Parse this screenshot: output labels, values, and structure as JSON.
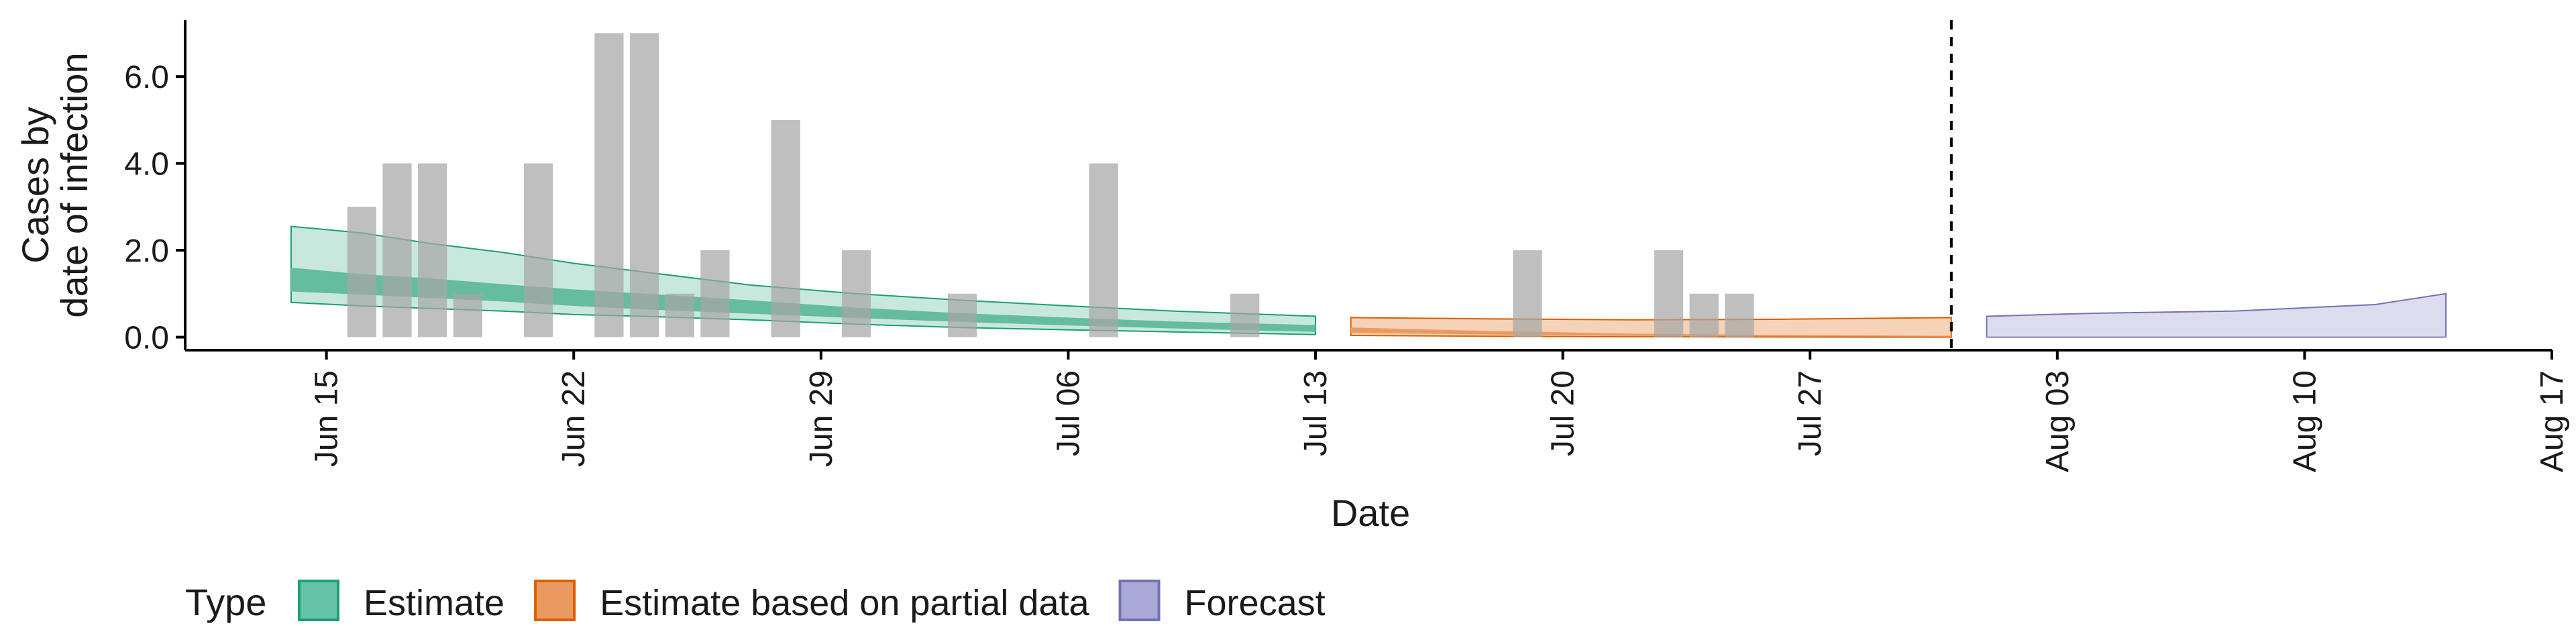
{
  "chart_data": {
    "type": "bar",
    "ylabel": [
      "Cases by",
      "date of infection"
    ],
    "xlabel": "Date",
    "xlim": [
      "2020-06-11",
      "2020-08-17"
    ],
    "ylim": [
      -0.3,
      7.3
    ],
    "grid": false,
    "y_ticks": [
      {
        "value": 0,
        "label": "0.0"
      },
      {
        "value": 2,
        "label": "2.0"
      },
      {
        "value": 4,
        "label": "4.0"
      },
      {
        "value": 6,
        "label": "6.0"
      }
    ],
    "x_ticks": [
      {
        "date": "2020-06-15",
        "label": "Jun 15"
      },
      {
        "date": "2020-06-22",
        "label": "Jun 22"
      },
      {
        "date": "2020-06-29",
        "label": "Jun 29"
      },
      {
        "date": "2020-07-06",
        "label": "Jul 06"
      },
      {
        "date": "2020-07-13",
        "label": "Jul 13"
      },
      {
        "date": "2020-07-20",
        "label": "Jul 20"
      },
      {
        "date": "2020-07-27",
        "label": "Jul 27"
      },
      {
        "date": "2020-08-03",
        "label": "Aug 03"
      },
      {
        "date": "2020-08-10",
        "label": "Aug 10"
      },
      {
        "date": "2020-08-17",
        "label": "Aug 17"
      }
    ],
    "observed_cases": [
      {
        "date": "2020-06-16",
        "value": 3
      },
      {
        "date": "2020-06-17",
        "value": 4
      },
      {
        "date": "2020-06-18",
        "value": 4
      },
      {
        "date": "2020-06-19",
        "value": 1
      },
      {
        "date": "2020-06-21",
        "value": 4
      },
      {
        "date": "2020-06-23",
        "value": 7
      },
      {
        "date": "2020-06-24",
        "value": 7
      },
      {
        "date": "2020-06-25",
        "value": 1
      },
      {
        "date": "2020-06-26",
        "value": 2
      },
      {
        "date": "2020-06-28",
        "value": 5
      },
      {
        "date": "2020-06-30",
        "value": 2
      },
      {
        "date": "2020-07-03",
        "value": 1
      },
      {
        "date": "2020-07-07",
        "value": 4
      },
      {
        "date": "2020-07-11",
        "value": 1
      },
      {
        "date": "2020-07-19",
        "value": 2
      },
      {
        "date": "2020-07-23",
        "value": 2
      },
      {
        "date": "2020-07-24",
        "value": 1
      },
      {
        "date": "2020-07-25",
        "value": 1
      }
    ],
    "forecast_start": "2020-07-31",
    "legend": {
      "title": "Type",
      "position": "bottom-left",
      "entries": [
        {
          "label": "Estimate",
          "fill": "#66c2a5",
          "stroke": "#1b9e77"
        },
        {
          "label": "Estimate based on partial data",
          "fill": "#eb9a5f",
          "stroke": "#d95f02"
        },
        {
          "label": "Forecast",
          "fill": "#aaa9d6",
          "stroke": "#7570b3"
        }
      ]
    },
    "series": [
      {
        "type_label": "Estimate",
        "outer_fill": "#c8e8de",
        "inner_fill": "#66bc9f",
        "stroke": "#1b9e77",
        "points": [
          {
            "date": "2020-06-14",
            "lo90": 0.8,
            "lo50": 1.05,
            "hi50": 1.6,
            "hi90": 2.55
          },
          {
            "date": "2020-06-16",
            "lo90": 0.72,
            "lo50": 0.98,
            "hi50": 1.45,
            "hi90": 2.4
          },
          {
            "date": "2020-06-18",
            "lo90": 0.66,
            "lo50": 0.9,
            "hi50": 1.35,
            "hi90": 2.15
          },
          {
            "date": "2020-06-20",
            "lo90": 0.6,
            "lo50": 0.82,
            "hi50": 1.22,
            "hi90": 1.95
          },
          {
            "date": "2020-06-22",
            "lo90": 0.52,
            "lo50": 0.72,
            "hi50": 1.1,
            "hi90": 1.7
          },
          {
            "date": "2020-06-24",
            "lo90": 0.48,
            "lo50": 0.64,
            "hi50": 1.0,
            "hi90": 1.5
          },
          {
            "date": "2020-06-27",
            "lo90": 0.4,
            "lo50": 0.54,
            "hi50": 0.85,
            "hi90": 1.2
          },
          {
            "date": "2020-06-30",
            "lo90": 0.3,
            "lo50": 0.44,
            "hi50": 0.68,
            "hi90": 1.0
          },
          {
            "date": "2020-07-03",
            "lo90": 0.22,
            "lo50": 0.35,
            "hi50": 0.55,
            "hi90": 0.85
          },
          {
            "date": "2020-07-06",
            "lo90": 0.17,
            "lo50": 0.27,
            "hi50": 0.45,
            "hi90": 0.72
          },
          {
            "date": "2020-07-09",
            "lo90": 0.12,
            "lo50": 0.2,
            "hi50": 0.36,
            "hi90": 0.6
          },
          {
            "date": "2020-07-13",
            "lo90": 0.06,
            "lo50": 0.12,
            "hi50": 0.28,
            "hi90": 0.48
          }
        ]
      },
      {
        "type_label": "Estimate based on partial data",
        "outer_fill": "#f5d2b8",
        "inner_fill": "#eb9a5f",
        "stroke": "#d95f02",
        "points": [
          {
            "date": "2020-07-14",
            "lo90": 0.04,
            "lo50": 0.1,
            "hi50": 0.22,
            "hi90": 0.45
          },
          {
            "date": "2020-07-18",
            "lo90": 0.02,
            "lo50": 0.06,
            "hi50": 0.14,
            "hi90": 0.42
          },
          {
            "date": "2020-07-22",
            "lo90": 0.01,
            "lo50": 0.03,
            "hi50": 0.08,
            "hi90": 0.4
          },
          {
            "date": "2020-07-26",
            "lo90": 0.005,
            "lo50": 0.02,
            "hi50": 0.05,
            "hi90": 0.41
          },
          {
            "date": "2020-07-31",
            "lo90": 0.0,
            "lo50": 0.01,
            "hi50": 0.03,
            "hi90": 0.45
          }
        ]
      },
      {
        "type_label": "Forecast",
        "outer_fill": "#dcdcef",
        "inner_fill": "#aaa9d6",
        "stroke": "#7570b3",
        "points": [
          {
            "date": "2020-08-01",
            "lo90": 0.0,
            "lo50": 0.0,
            "hi50": 0.02,
            "hi90": 0.48
          },
          {
            "date": "2020-08-04",
            "lo90": 0.0,
            "lo50": 0.0,
            "hi50": 0.02,
            "hi90": 0.55
          },
          {
            "date": "2020-08-08",
            "lo90": 0.0,
            "lo50": 0.0,
            "hi50": 0.02,
            "hi90": 0.6
          },
          {
            "date": "2020-08-12",
            "lo90": 0.0,
            "lo50": 0.0,
            "hi50": 0.02,
            "hi90": 0.75
          },
          {
            "date": "2020-08-14",
            "lo90": 0.0,
            "lo50": 0.0,
            "hi50": 0.02,
            "hi90": 1.0
          }
        ]
      }
    ]
  }
}
